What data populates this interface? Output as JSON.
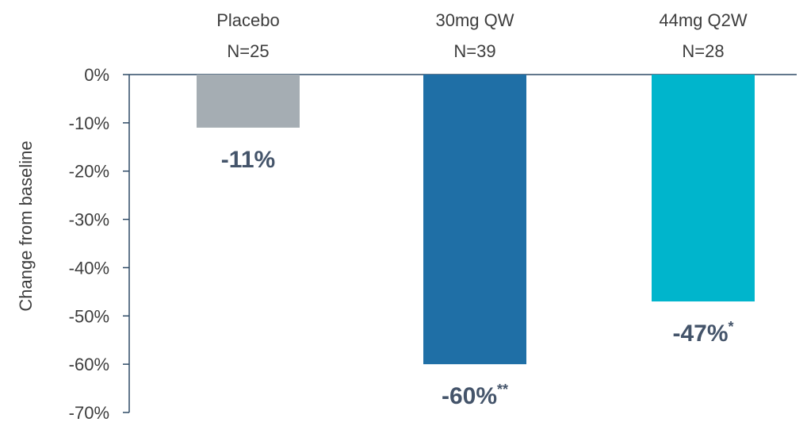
{
  "chart_data": {
    "type": "bar",
    "categories": [
      "Placebo",
      "30mg QW",
      "44mg Q2W"
    ],
    "category_sublabels": [
      "N=25",
      "N=39",
      "N=28"
    ],
    "values": [
      -11,
      -60,
      -47
    ],
    "value_labels": [
      "-11%",
      "-60%",
      "-47%"
    ],
    "significance": [
      "",
      "**",
      "*"
    ],
    "bar_colors": [
      "#a5adb3",
      "#1f6fa6",
      "#00b5cc"
    ],
    "title": "",
    "xlabel": "",
    "ylabel": "Change from baseline",
    "ylim": [
      -70,
      0
    ],
    "yticks": [
      0,
      -10,
      -20,
      -30,
      -40,
      -50,
      -60,
      -70
    ],
    "ytick_labels": [
      "0%",
      "-10%",
      "-20%",
      "-30%",
      "-40%",
      "-50%",
      "-60%",
      "-70%"
    ],
    "axis_color": "#2e4a66",
    "grid": false,
    "legend": "none"
  }
}
